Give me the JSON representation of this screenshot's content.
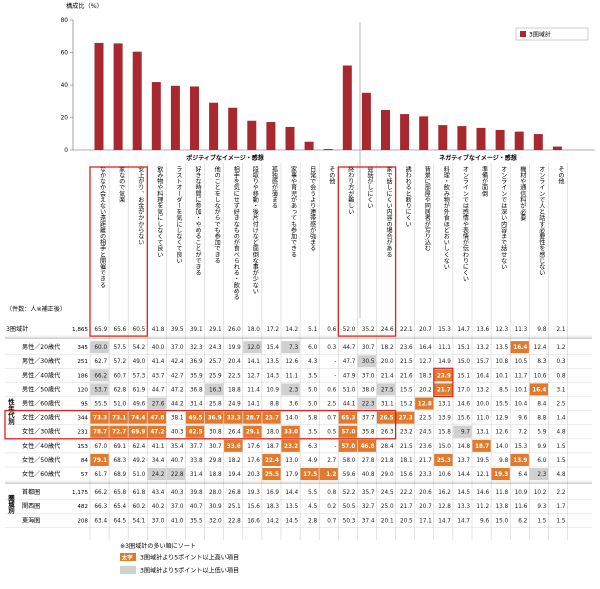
{
  "chart_data": {
    "type": "bar",
    "title": "",
    "ylabel": "構成比（%）",
    "ylim": [
      0,
      80
    ],
    "yticks": [
      0,
      20,
      40,
      60,
      80
    ],
    "legend": "3圏域計",
    "group_labels": [
      "ポジティブなイメージ・感想",
      "ネガティブなイメージ・感想"
    ],
    "categories": [
      "なかなか会えない遠距離の相手と開催できる",
      "家なので気楽",
      "安上がり、お金がかからない",
      "飲み物や料理を気にしなくて良い",
      "ラストオーダーを気にしなくて良い",
      "好きな時間に参加・やめることができる",
      "他のことをしながらでも参加できる",
      "相手を気にせず好きなものが食べられる・飲める",
      "段取りや移動・後片付けなど面倒な事が少ない",
      "孤独感が薄まる",
      "家事や育児があっても参加できる",
      "日常で会うより連帯感が強まる",
      "その他",
      "終わり方が難しい",
      "会話がしにくい",
      "家で話しにくい内容の場合がある",
      "誘われると断りにくい",
      "背景に部屋や同居者が写り込む",
      "料理・飲み物が外食ほどおいしくない",
      "オンラインでは感情や表情が伝わりにくい",
      "準備が面倒",
      "オンラインでは深い内容まで話せない",
      "機材や通信料が必要",
      "オンラインで人と話す必要性を感じない",
      "その他"
    ],
    "values": [
      65.9,
      65.6,
      60.5,
      41.8,
      39.5,
      39.1,
      29.1,
      26.0,
      18.0,
      17.2,
      14.2,
      5.1,
      0.6,
      52.0,
      35.2,
      24.6,
      22.1,
      20.7,
      15.3,
      14.7,
      13.6,
      12.3,
      11.3,
      9.8,
      2.1
    ],
    "table_header": "（件数：人※補正後）",
    "total_row": {
      "label": "3圏域計",
      "n": "1,865",
      "values": [
        "65.9",
        "65.6",
        "60.5",
        "41.8",
        "39.5",
        "39.1",
        "29.1",
        "26.0",
        "18.0",
        "17.2",
        "14.2",
        "5.1",
        "0.6",
        "52.0",
        "35.2",
        "24.6",
        "22.1",
        "20.7",
        "15.3",
        "14.7",
        "13.6",
        "12.3",
        "11.3",
        "9.8",
        "2.1"
      ]
    },
    "row_groups": [
      {
        "label": "性年代別",
        "rows": [
          {
            "label": "男性／20歳代",
            "n": "345",
            "values": [
              "60.0",
              "57.5",
              "54.2",
              "40.0",
              "37.0",
              "32.3",
              "24.3",
              "19.9",
              "12.0",
              "15.4",
              "7.3",
              "6.0",
              "0.3",
              "44.7",
              "30.7",
              "18.2",
              "23.6",
              "16.4",
              "11.1",
              "15.1",
              "13.2",
              "13.5",
              "16.4",
              "12.4",
              "1.2"
            ]
          },
          {
            "label": "男性／30歳代",
            "n": "251",
            "values": [
              "62.7",
              "57.2",
              "49.0",
              "41.4",
              "42.4",
              "36.9",
              "25.7",
              "20.4",
              "14.1",
              "13.5",
              "12.6",
              "4.3",
              "-",
              "47.7",
              "30.5",
              "20.0",
              "21.5",
              "12.7",
              "14.9",
              "15.0",
              "15.7",
              "10.8",
              "10.5",
              "8.3",
              "0.3"
            ]
          },
          {
            "label": "男性／40歳代",
            "n": "186",
            "values": [
              "66.2",
              "60.7",
              "57.3",
              "43.7",
              "42.7",
              "35.9",
              "25.9",
              "22.5",
              "12.7",
              "14.3",
              "11.1",
              "3.5",
              "-",
              "47.9",
              "37.0",
              "21.4",
              "21.6",
              "18.3",
              "23.9",
              "15.1",
              "16.4",
              "10.1",
              "11.7",
              "10.6",
              "0.8"
            ]
          },
          {
            "label": "男性／50歳代",
            "n": "120",
            "values": [
              "53.7",
              "62.8",
              "61.9",
              "44.7",
              "47.2",
              "36.8",
              "16.3",
              "18.8",
              "11.4",
              "10.9",
              "2.3",
              "5.0",
              "0.6",
              "51.0",
              "38.0",
              "27.5",
              "15.5",
              "20.2",
              "21.7",
              "17.0",
              "13.2",
              "8.5",
              "10.1",
              "16.4",
              "3.1"
            ]
          },
          {
            "label": "男性／60歳代",
            "n": "95",
            "values": [
              "55.5",
              "51.0",
              "49.6",
              "27.6",
              "44.2",
              "31.4",
              "25.8",
              "24.9",
              "14.1",
              "8.8",
              "3.6",
              "5.0",
              "2.5",
              "44.1",
              "22.3",
              "31.1",
              "15.2",
              "12.8",
              "13.1",
              "14.6",
              "10.0",
              "15.5",
              "10.4",
              "8.4",
              "2.5"
            ]
          },
          {
            "label": "女性／20歳代",
            "n": "344",
            "values": [
              "73.3",
              "73.1",
              "74.4",
              "47.8",
              "38.1",
              "49.5",
              "36.9",
              "33.3",
              "28.7",
              "23.7",
              "14.0",
              "5.8",
              "0.7",
              "65.3",
              "37.7",
              "26.5",
              "27.3",
              "22.5",
              "13.9",
              "15.6",
              "11.0",
              "12.9",
              "9.6",
              "8.8",
              "1.4"
            ]
          },
          {
            "label": "女性／30歳代",
            "n": "231",
            "values": [
              "78.7",
              "72.7",
              "69.9",
              "47.2",
              "40.3",
              "42.5",
              "30.8",
              "26.4",
              "29.1",
              "18.0",
              "33.0",
              "3.5",
              "0.5",
              "57.0",
              "35.8",
              "26.3",
              "23.2",
              "24.5",
              "15.8",
              "9.7",
              "13.1",
              "12.6",
              "7.2",
              "5.9",
              "4.8"
            ]
          },
          {
            "label": "女性／40歳代",
            "n": "153",
            "values": [
              "67.0",
              "69.1",
              "62.4",
              "41.1",
              "35.4",
              "37.7",
              "30.7",
              "33.6",
              "17.6",
              "18.7",
              "23.2",
              "6.3",
              "-",
              "57.0",
              "46.8",
              "28.4",
              "21.5",
              "23.6",
              "15.0",
              "14.8",
              "18.7",
              "14.0",
              "15.3",
              "9.9",
              "1.5"
            ]
          },
          {
            "label": "女性／50歳代",
            "n": "84",
            "values": [
              "79.1",
              "68.3",
              "49.2",
              "34.4",
              "40.7",
              "33.8",
              "29.8",
              "18.2",
              "17.6",
              "22.4",
              "13.0",
              "4.9",
              "2.7",
              "58.0",
              "27.8",
              "21.8",
              "18.1",
              "21.7",
              "25.3",
              "13.7",
              "19.5",
              "9.8",
              "13.9",
              "6.0",
              "1.5"
            ]
          },
          {
            "label": "女性／60歳代",
            "n": "57",
            "values": [
              "61.7",
              "68.9",
              "51.0",
              "24.2",
              "22.8",
              "31.4",
              "18.8",
              "19.4",
              "20.3",
              "25.5",
              "17.9",
              "17.5",
              "1.2",
              "59.6",
              "40.8",
              "29.0",
              "15.6",
              "23.3",
              "10.6",
              "14.4",
              "12.1",
              "19.3",
              "6.4",
              "2.3",
              "4.8"
            ]
          }
        ]
      },
      {
        "label": "圏域別",
        "rows": [
          {
            "label": "首都圏",
            "n": "1,175",
            "values": [
              "66.2",
              "65.8",
              "61.8",
              "43.4",
              "40.3",
              "39.8",
              "28.0",
              "26.8",
              "19.3",
              "16.9",
              "14.4",
              "5.5",
              "0.8",
              "52.2",
              "35.7",
              "24.5",
              "22.2",
              "20.6",
              "16.2",
              "14.5",
              "14.6",
              "11.8",
              "10.9",
              "10.2",
              "2.2"
            ]
          },
          {
            "label": "関西圏",
            "n": "482",
            "values": [
              "66.3",
              "65.4",
              "60.2",
              "40.2",
              "37.0",
              "40.7",
              "30.9",
              "25.1",
              "15.6",
              "18.3",
              "13.5",
              "4.5",
              "0.2",
              "50.5",
              "32.7",
              "25.0",
              "21.7",
              "20.7",
              "12.8",
              "13.3",
              "11.2",
              "13.8",
              "11.6",
              "9.3",
              "1.7"
            ]
          },
          {
            "label": "東海圏",
            "n": "208",
            "values": [
              "63.4",
              "64.5",
              "54.1",
              "37.0",
              "41.0",
              "35.5",
              "32.0",
              "22.8",
              "16.6",
              "14.2",
              "14.5",
              "2.8",
              "0.7",
              "50.3",
              "37.4",
              "20.1",
              "20.5",
              "17.1",
              "14.7",
              "14.7",
              "9.6",
              "15.0",
              "6.2",
              "1.5",
              "1.5"
            ]
          }
        ]
      }
    ],
    "highlight_high": [
      [
        0,
        22
      ],
      [
        2,
        18
      ],
      [
        3,
        18
      ],
      [
        3,
        23
      ],
      [
        4,
        17
      ],
      [
        5,
        0
      ],
      [
        5,
        1
      ],
      [
        5,
        2
      ],
      [
        5,
        3
      ],
      [
        5,
        5
      ],
      [
        5,
        6
      ],
      [
        5,
        7
      ],
      [
        5,
        8
      ],
      [
        5,
        9
      ],
      [
        5,
        13
      ],
      [
        5,
        15
      ],
      [
        5,
        16
      ],
      [
        6,
        0
      ],
      [
        6,
        1
      ],
      [
        6,
        2
      ],
      [
        6,
        3
      ],
      [
        6,
        5
      ],
      [
        6,
        8
      ],
      [
        6,
        10
      ],
      [
        6,
        13
      ],
      [
        7,
        7
      ],
      [
        7,
        10
      ],
      [
        7,
        13
      ],
      [
        7,
        14
      ],
      [
        7,
        20
      ],
      [
        8,
        0
      ],
      [
        8,
        9
      ],
      [
        8,
        18
      ],
      [
        8,
        22
      ],
      [
        9,
        9
      ],
      [
        9,
        11
      ],
      [
        9,
        12
      ],
      [
        9,
        21
      ]
    ],
    "highlight_low": [
      [
        0,
        0
      ],
      [
        0,
        8
      ],
      [
        0,
        10
      ],
      [
        1,
        14
      ],
      [
        2,
        0
      ],
      [
        3,
        0
      ],
      [
        3,
        6
      ],
      [
        3,
        10
      ],
      [
        3,
        15
      ],
      [
        4,
        3
      ],
      [
        4,
        14
      ],
      [
        6,
        19
      ],
      [
        9,
        3
      ],
      [
        9,
        4
      ],
      [
        9,
        23
      ]
    ],
    "notes": [
      "※3圏域計の多い順にソート",
      "3圏域計より5ポイント以上高い項目",
      "3圏域計より5ポイント以上低い項目"
    ],
    "note_swatch": "太字",
    "colors": {
      "bar": "#a7282e",
      "high": "#e07a2e",
      "low": "#d0d0d0",
      "frame": "#e0201a"
    }
  }
}
